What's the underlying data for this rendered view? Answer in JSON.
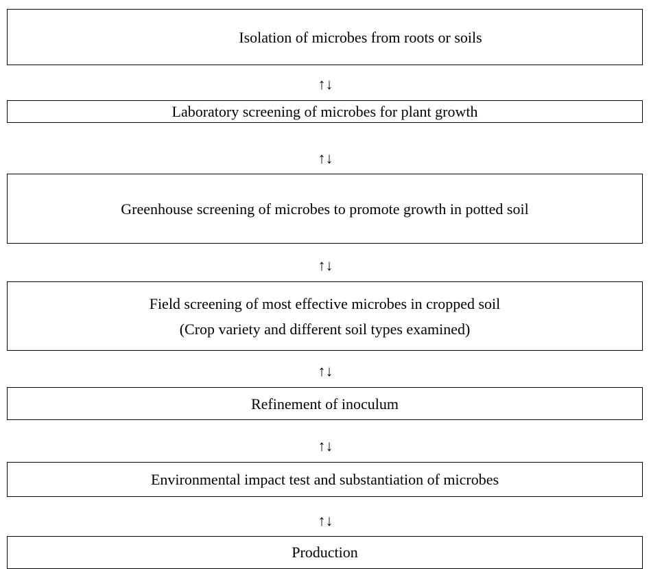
{
  "nodes": [
    {
      "lines": [
        "Isolation of microbes from roots or soils"
      ]
    },
    {
      "lines": [
        "Laboratory screening of microbes for plant growth"
      ]
    },
    {
      "lines": [
        "Greenhouse screening of microbes to promote growth in potted soil"
      ]
    },
    {
      "lines": [
        "Field screening of most effective microbes in cropped soil",
        "(Crop variety and different soil types examined)"
      ]
    },
    {
      "lines": [
        "Refinement of inoculum"
      ]
    },
    {
      "lines": [
        "Environmental impact test and substantiation of microbes"
      ]
    },
    {
      "lines": [
        "Production"
      ]
    }
  ],
  "connectors": [
    "↑↓",
    "↑↓",
    "↑↓",
    "↑↓",
    "↑↓",
    "↑↓"
  ]
}
